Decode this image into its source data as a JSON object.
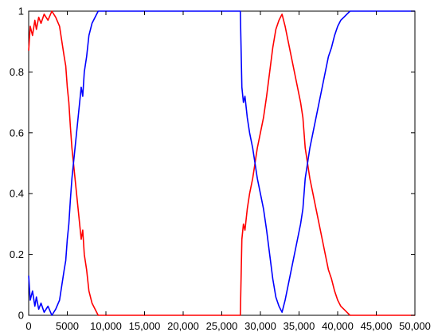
{
  "chart_data": {
    "type": "line",
    "title": "",
    "xlabel": "",
    "ylabel": "",
    "xlim": [
      0,
      50000
    ],
    "ylim": [
      0,
      1
    ],
    "grid": false,
    "x_ticks": [
      0,
      5000,
      10000,
      15000,
      20000,
      25000,
      30000,
      35000,
      40000,
      45000,
      50000
    ],
    "x_tick_labels": [
      "0",
      "5000",
      "10,000",
      "15,000",
      "20,000",
      "25,000",
      "30,000",
      "35,000",
      "40,000",
      "45,000",
      "50,000"
    ],
    "y_ticks": [
      0,
      0.2,
      0.4,
      0.6,
      0.8,
      1
    ],
    "y_tick_labels": [
      "0",
      "0.2",
      "0.4",
      "0.6",
      "0.8",
      "1"
    ],
    "series": [
      {
        "color": "#ff0000",
        "x": [
          0,
          200,
          500,
          800,
          1000,
          1300,
          1600,
          2000,
          2500,
          3000,
          3500,
          4000,
          4300,
          4600,
          4800,
          5000,
          5200,
          5400,
          5600,
          5800,
          6000,
          6200,
          6400,
          6600,
          6800,
          7000,
          7200,
          7500,
          7800,
          8200,
          8600,
          9000,
          10000,
          15000,
          20000,
          25000,
          27000,
          27400,
          27600,
          27800,
          28000,
          28300,
          28600,
          29000,
          29300,
          29600,
          30000,
          30400,
          30800,
          31200,
          31600,
          32000,
          32400,
          32800,
          33200,
          33600,
          34000,
          34400,
          34800,
          35200,
          35500,
          35800,
          36100,
          36400,
          36800,
          37200,
          37600,
          38000,
          38400,
          38800,
          39200,
          39600,
          40000,
          40400,
          40800,
          41200,
          41600,
          42000,
          43000,
          50000
        ],
        "y": [
          0.87,
          0.95,
          0.92,
          0.97,
          0.94,
          0.98,
          0.96,
          0.99,
          0.97,
          1.0,
          0.98,
          0.95,
          0.9,
          0.85,
          0.82,
          0.75,
          0.7,
          0.62,
          0.55,
          0.5,
          0.45,
          0.4,
          0.35,
          0.3,
          0.25,
          0.28,
          0.2,
          0.15,
          0.08,
          0.04,
          0.02,
          0.0,
          0.0,
          0.0,
          0.0,
          0.0,
          0.0,
          0.0,
          0.25,
          0.3,
          0.28,
          0.35,
          0.4,
          0.45,
          0.5,
          0.55,
          0.6,
          0.65,
          0.72,
          0.8,
          0.88,
          0.94,
          0.97,
          0.99,
          0.95,
          0.9,
          0.85,
          0.8,
          0.75,
          0.7,
          0.65,
          0.55,
          0.5,
          0.45,
          0.4,
          0.35,
          0.3,
          0.25,
          0.2,
          0.15,
          0.12,
          0.08,
          0.05,
          0.03,
          0.02,
          0.01,
          0.0,
          0.0,
          0.0,
          0.0
        ]
      },
      {
        "color": "#0000ff",
        "x": [
          0,
          200,
          500,
          800,
          1000,
          1300,
          1600,
          2000,
          2500,
          3000,
          3500,
          4000,
          4300,
          4600,
          4800,
          5000,
          5200,
          5400,
          5600,
          5800,
          6000,
          6200,
          6400,
          6600,
          6800,
          7000,
          7200,
          7500,
          7800,
          8200,
          8600,
          9000,
          10000,
          15000,
          20000,
          25000,
          27000,
          27400,
          27600,
          27800,
          28000,
          28300,
          28600,
          29000,
          29300,
          29600,
          30000,
          30400,
          30800,
          31200,
          31600,
          32000,
          32400,
          32800,
          33200,
          33600,
          34000,
          34400,
          34800,
          35200,
          35500,
          35800,
          36100,
          36400,
          36800,
          37200,
          37600,
          38000,
          38400,
          38800,
          39200,
          39600,
          40000,
          40400,
          40800,
          41200,
          41600,
          42000,
          43000,
          50000
        ],
        "y": [
          0.13,
          0.05,
          0.08,
          0.03,
          0.06,
          0.02,
          0.04,
          0.01,
          0.03,
          0.0,
          0.02,
          0.05,
          0.1,
          0.15,
          0.18,
          0.25,
          0.3,
          0.38,
          0.45,
          0.5,
          0.55,
          0.6,
          0.65,
          0.7,
          0.75,
          0.72,
          0.8,
          0.85,
          0.92,
          0.96,
          0.98,
          1.0,
          1.0,
          1.0,
          1.0,
          1.0,
          1.0,
          1.0,
          0.75,
          0.7,
          0.72,
          0.65,
          0.6,
          0.55,
          0.5,
          0.45,
          0.4,
          0.35,
          0.28,
          0.2,
          0.12,
          0.06,
          0.03,
          0.01,
          0.05,
          0.1,
          0.15,
          0.2,
          0.25,
          0.3,
          0.35,
          0.45,
          0.5,
          0.55,
          0.6,
          0.65,
          0.7,
          0.75,
          0.8,
          0.85,
          0.88,
          0.92,
          0.95,
          0.97,
          0.98,
          0.99,
          1.0,
          1.0,
          1.0,
          1.0
        ]
      }
    ]
  }
}
